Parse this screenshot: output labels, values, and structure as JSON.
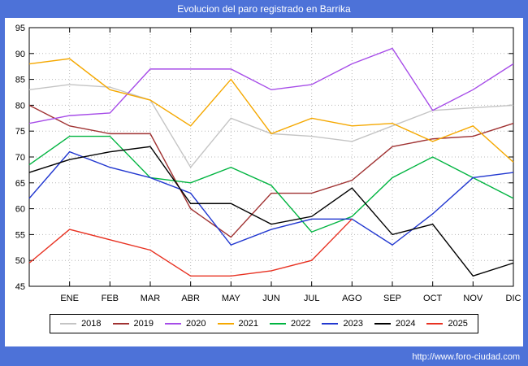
{
  "title": "Evolucion del paro registrado en Barrika",
  "footer": {
    "url": "http://www.foro-ciudad.com"
  },
  "colors": {
    "background": "#4d72d8",
    "panel": "#ffffff",
    "grid": "#b8b8b8",
    "axis": "#000000",
    "title_text": "#ffffff"
  },
  "chart_data": {
    "type": "line",
    "title": "Evolucion del paro registrado en Barrika",
    "xlabel": "",
    "ylabel": "",
    "ylim": [
      45,
      95
    ],
    "ytick_step": 5,
    "grid": true,
    "legend_position": "bottom",
    "x_labels": [
      "ENE",
      "FEB",
      "MAR",
      "ABR",
      "MAY",
      "JUN",
      "JUL",
      "AGO",
      "SEP",
      "OCT",
      "NOV",
      "DIC"
    ],
    "note": "values[0] of each series is the point drawn on the left axis; values[1..12] align with the ENE..DIC gridlines",
    "series": [
      {
        "name": "2018",
        "color": "#c4c4c4",
        "values": [
          83,
          84,
          83.5,
          81,
          68,
          77.5,
          74.5,
          74,
          73,
          76,
          79,
          79.5,
          80
        ]
      },
      {
        "name": "2019",
        "color": "#a03232",
        "values": [
          80,
          76,
          74.5,
          74.5,
          60,
          54.5,
          63,
          63,
          65.5,
          72,
          73.5,
          74,
          76.5
        ]
      },
      {
        "name": "2020",
        "color": "#a64ce8",
        "values": [
          76.5,
          78,
          78.5,
          87,
          87,
          87,
          83,
          84,
          88,
          91,
          79,
          83,
          88
        ]
      },
      {
        "name": "2021",
        "color": "#f5a800",
        "values": [
          88,
          89,
          83,
          81,
          76,
          85,
          74.5,
          77.5,
          76,
          76.5,
          73,
          76,
          69
        ]
      },
      {
        "name": "2022",
        "color": "#00b440",
        "values": [
          68.5,
          74,
          74,
          66,
          65,
          68,
          64.5,
          55.5,
          58.5,
          66,
          70,
          66,
          62
        ]
      },
      {
        "name": "2023",
        "color": "#2238d0",
        "values": [
          62,
          71,
          68,
          66,
          63,
          53,
          56,
          58,
          58,
          53,
          59,
          66,
          67
        ]
      },
      {
        "name": "2024",
        "color": "#000000",
        "values": [
          67,
          69.5,
          71,
          72,
          61,
          61,
          57,
          58.5,
          64,
          55,
          57,
          47,
          49.5
        ]
      },
      {
        "name": "2025",
        "color": "#e83222",
        "values": [
          49.5,
          56,
          54,
          52,
          47,
          47,
          48,
          50,
          58
        ]
      }
    ]
  }
}
